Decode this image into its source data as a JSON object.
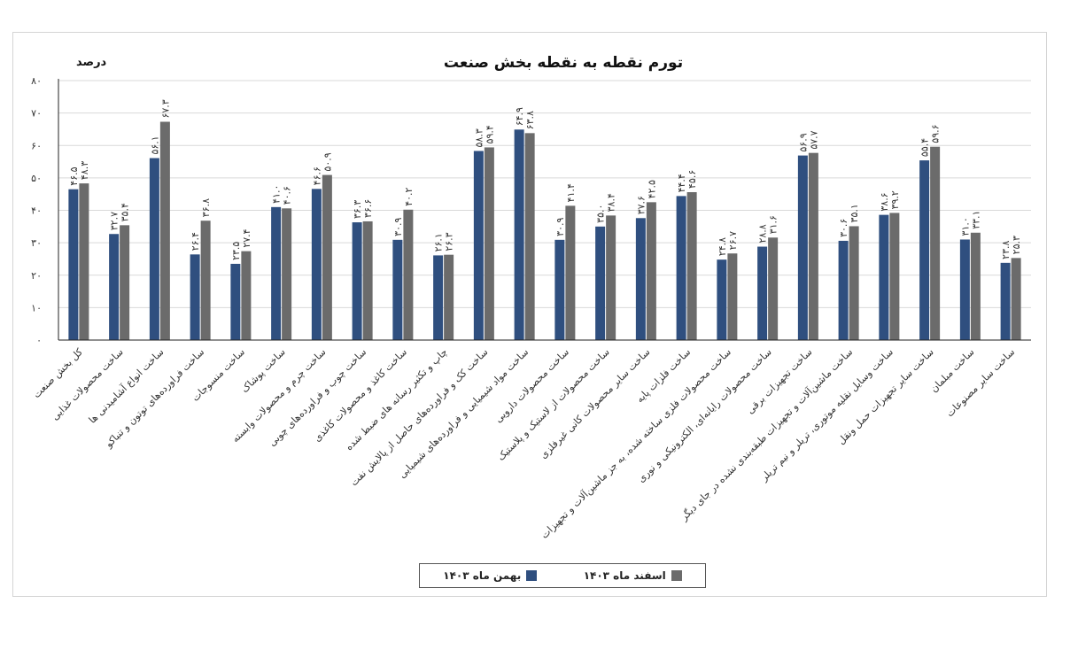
{
  "chart_data": {
    "type": "bar",
    "title": "تورم نقطه به نقطه بخش صنعت",
    "ylabel": "درصد",
    "ylim": [
      0,
      80
    ],
    "yticks": [
      "۰",
      "۱۰",
      "۲۰",
      "۳۰",
      "۴۰",
      "۵۰",
      "۶۰",
      "۷۰",
      "۸۰"
    ],
    "grid": true,
    "legend_position": "bottom",
    "categories": [
      "کل بخش صنعت",
      "ساخت محصولات غذایی",
      "ساخت انواع آشامیدنی ها",
      "ساخت فراورده‌های توتون و تنباکو",
      "ساخت منسوجات",
      "ساخت پوشاک",
      "ساخت چرم و محصولات وابسته",
      "ساخت چوب و فراورده‌های چوبی",
      "ساخت کاغذ و محصولات کاغذی",
      "چاپ و تکثیر رسانه های ضبط شده",
      "ساخت کک و فراورده‌های حاصل از پالایش نفت",
      "ساخت مواد شیمیایی و فراورده‌های شیمیایی",
      "ساخت محصولات دارویی",
      "ساخت محصولات از لاستیک و پلاستیک",
      "ساخت سایر محصولات کانی غیرفلزی",
      "ساخت فلزات پایه",
      "ساخت محصولات فلزی ساخته شده، به جز ماشین‌آلات و تجهیزات",
      "ساخت محصولات رایانه‌ای، الکترونیکی و نوری",
      "ساخت تجهیزات برقی",
      "ساخت ماشین‌آلات و تجهیزات طبقه‌بندی نشده در جای دیگر",
      "ساخت وسایل نقلیه موتوری، تریلر و نیم تریلر",
      "ساخت سایر تجهیزات حمل ونقل",
      "ساخت مبلمان",
      "ساخت سایر مصنوعات"
    ],
    "series": [
      {
        "name": "بهمن ماه ۱۴۰۳",
        "color": "#2f4f7f",
        "values": [
          46.5,
          32.7,
          56.1,
          26.4,
          23.5,
          41.0,
          46.6,
          36.3,
          30.9,
          26.1,
          58.3,
          64.9,
          30.9,
          35.0,
          37.6,
          44.4,
          24.8,
          28.8,
          56.9,
          30.6,
          38.6,
          55.4,
          31.0,
          23.8
        ],
        "labels": [
          "۴۶.۵",
          "۳۲.۷",
          "۵۶.۱",
          "۲۶.۴",
          "۲۳.۵",
          "۴۱.۰",
          "۴۶.۶",
          "۳۶.۳",
          "۳۰.۹",
          "۲۶.۱",
          "۵۸.۳",
          "۶۴.۹",
          "۳۰.۹",
          "۳۵.۰",
          "۳۷.۶",
          "۴۴.۴",
          "۲۴.۸",
          "۲۸.۸",
          "۵۶.۹",
          "۳۰.۶",
          "۳۸.۶",
          "۵۵.۴",
          "۳۱.۰",
          "۲۳.۸"
        ]
      },
      {
        "name": "اسفند ماه ۱۴۰۳",
        "color": "#6b6b6b",
        "values": [
          48.3,
          35.4,
          67.3,
          36.8,
          27.4,
          40.6,
          50.9,
          36.6,
          40.2,
          26.3,
          59.4,
          63.8,
          41.4,
          38.4,
          42.5,
          45.6,
          26.7,
          31.6,
          57.7,
          35.1,
          39.2,
          59.6,
          33.1,
          25.3
        ],
        "labels": [
          "۴۸.۳",
          "۳۵.۴",
          "۶۷.۳",
          "۳۶.۸",
          "۲۷.۴",
          "۴۰.۶",
          "۵۰.۹",
          "۳۶.۶",
          "۴۰.۲",
          "۲۶.۳",
          "۵۹.۴",
          "۶۳.۸",
          "۴۱.۴",
          "۳۸.۴",
          "۴۲.۵",
          "۴۵.۶",
          "۲۶.۷",
          "۳۱.۶",
          "۵۷.۷",
          "۳۵.۱",
          "۳۹.۲",
          "۵۹.۶",
          "۳۳.۱",
          "۲۵.۳"
        ]
      }
    ]
  }
}
